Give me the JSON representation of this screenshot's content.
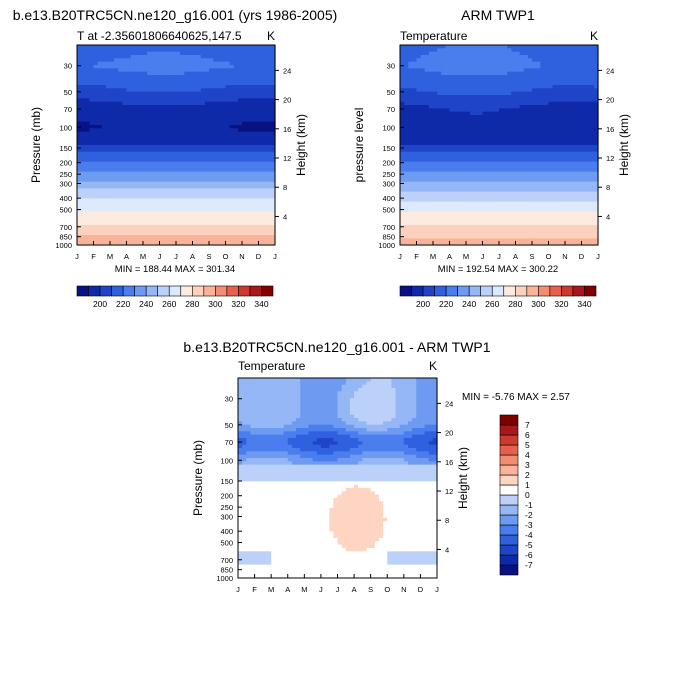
{
  "chart_data": [
    {
      "type": "heatmap",
      "title": "b.e13.B20TRC5CN.ne120_g16.001 (yrs 1986-2005)",
      "left_label": "T at -2.35601806640625,147.5",
      "right_label": "K",
      "ylabel": "Pressure (mb)",
      "ylabel_right": "Height (km)",
      "x_ticks": [
        "J",
        "F",
        "M",
        "A",
        "M",
        "J",
        "J",
        "A",
        "S",
        "O",
        "N",
        "D",
        "J"
      ],
      "y_ticks": [
        "30",
        "50",
        "70",
        "100",
        "150",
        "200",
        "250",
        "300",
        "400",
        "500",
        "700",
        "850",
        "1000"
      ],
      "y_ticks_right": [
        "24",
        "20",
        "16",
        "12",
        "8",
        "4"
      ],
      "minmax_text": "MIN = 188.44 MAX = 301.34",
      "min": 188.44,
      "max": 301.34,
      "ylim": [
        1000,
        20
      ],
      "colorbar": {
        "ticks": [
          "200",
          "220",
          "240",
          "260",
          "280",
          "300",
          "320",
          "340"
        ],
        "levels": [
          190,
          200,
          210,
          220,
          230,
          240,
          250,
          260,
          270,
          280,
          290,
          300,
          310,
          320,
          330,
          340
        ],
        "colors": [
          "#0a1282",
          "#0f2aa8",
          "#1f44c8",
          "#2f61df",
          "#4a7ded",
          "#6e9bf2",
          "#95b7f6",
          "#bbd1fa",
          "#dde9fc",
          "#fdebe1",
          "#fcd2bf",
          "#f8b39a",
          "#f28d72",
          "#e6604c",
          "#cc3a2d",
          "#a8171a",
          "#800000"
        ]
      },
      "profile": [
        {
          "p": 20,
          "t": 215
        },
        {
          "p": 30,
          "t": 222
        },
        {
          "p": 50,
          "t": 208
        },
        {
          "p": 70,
          "t": 195
        },
        {
          "p": 100,
          "t": 191
        },
        {
          "p": 130,
          "t": 195
        },
        {
          "p": 150,
          "t": 205
        },
        {
          "p": 200,
          "t": 221
        },
        {
          "p": 250,
          "t": 233
        },
        {
          "p": 300,
          "t": 243
        },
        {
          "p": 400,
          "t": 259
        },
        {
          "p": 500,
          "t": 268
        },
        {
          "p": 600,
          "t": 276
        },
        {
          "p": 700,
          "t": 283
        },
        {
          "p": 850,
          "t": 291
        },
        {
          "p": 1000,
          "t": 299
        }
      ]
    },
    {
      "type": "heatmap",
      "title": "ARM TWP1",
      "left_label": "Temperature",
      "right_label": "K",
      "ylabel": "pressure level",
      "ylabel_right": "Height (km)",
      "x_ticks": [
        "J",
        "F",
        "M",
        "A",
        "M",
        "J",
        "J",
        "A",
        "S",
        "O",
        "N",
        "D",
        "J"
      ],
      "y_ticks": [
        "30",
        "50",
        "70",
        "100",
        "150",
        "200",
        "250",
        "300",
        "400",
        "500",
        "700",
        "850",
        "1000"
      ],
      "y_ticks_right": [
        "24",
        "20",
        "16",
        "12",
        "8",
        "4"
      ],
      "minmax_text": "MIN = 192.54 MAX = 300.22",
      "min": 192.54,
      "max": 300.22,
      "ylim": [
        1000,
        20
      ],
      "colorbar": {
        "ticks": [
          "200",
          "220",
          "240",
          "260",
          "280",
          "300",
          "320",
          "340"
        ],
        "levels": [
          190,
          200,
          210,
          220,
          230,
          240,
          250,
          260,
          270,
          280,
          290,
          300,
          310,
          320,
          330,
          340
        ],
        "colors": [
          "#0a1282",
          "#0f2aa8",
          "#1f44c8",
          "#2f61df",
          "#4a7ded",
          "#6e9bf2",
          "#95b7f6",
          "#bbd1fa",
          "#dde9fc",
          "#fdebe1",
          "#fcd2bf",
          "#f8b39a",
          "#f28d72",
          "#e6604c",
          "#cc3a2d",
          "#a8171a",
          "#800000"
        ]
      },
      "profile": [
        {
          "p": 20,
          "t": 218
        },
        {
          "p": 30,
          "t": 222
        },
        {
          "p": 50,
          "t": 210
        },
        {
          "p": 70,
          "t": 198
        },
        {
          "p": 100,
          "t": 194
        },
        {
          "p": 130,
          "t": 196
        },
        {
          "p": 150,
          "t": 205
        },
        {
          "p": 200,
          "t": 220
        },
        {
          "p": 250,
          "t": 232
        },
        {
          "p": 300,
          "t": 242
        },
        {
          "p": 400,
          "t": 258
        },
        {
          "p": 500,
          "t": 267
        },
        {
          "p": 600,
          "t": 275
        },
        {
          "p": 700,
          "t": 282
        },
        {
          "p": 850,
          "t": 290
        },
        {
          "p": 1000,
          "t": 298
        }
      ]
    },
    {
      "type": "heatmap",
      "title": "b.e13.B20TRC5CN.ne120_g16.001 - ARM TWP1",
      "left_label": "Temperature",
      "right_label": "K",
      "ylabel": "Pressure (mb)",
      "ylabel_right": "Height (km)",
      "x_ticks": [
        "J",
        "F",
        "M",
        "A",
        "M",
        "J",
        "J",
        "A",
        "S",
        "O",
        "N",
        "D",
        "J"
      ],
      "y_ticks": [
        "30",
        "50",
        "70",
        "100",
        "150",
        "200",
        "250",
        "300",
        "400",
        "500",
        "700",
        "850",
        "1000"
      ],
      "y_ticks_right": [
        "24",
        "20",
        "16",
        "12",
        "8",
        "4"
      ],
      "minmax_text": "MIN =  -5.76 MAX =   2.57",
      "min": -5.76,
      "max": 2.57,
      "ylim": [
        1000,
        20
      ],
      "colorbar": {
        "ticks": [
          "-7",
          "-6",
          "-5",
          "-4",
          "-3",
          "-2",
          "-1",
          "0",
          "1",
          "2",
          "3",
          "4",
          "5",
          "6",
          "7"
        ],
        "levels": [
          -7,
          -6,
          -5,
          -4,
          -3,
          -2,
          -1,
          0,
          1,
          2,
          3,
          4,
          5,
          6,
          7
        ],
        "colors": [
          "#0a1282",
          "#0f2aa8",
          "#1f44c8",
          "#2f61df",
          "#4a7ded",
          "#6e9bf2",
          "#95b7f6",
          "#bbd1fa",
          "#ffffff",
          "#fdd5c2",
          "#f8b39a",
          "#f28d72",
          "#e6604c",
          "#cc3a2d",
          "#a8171a",
          "#800000"
        ]
      }
    }
  ]
}
